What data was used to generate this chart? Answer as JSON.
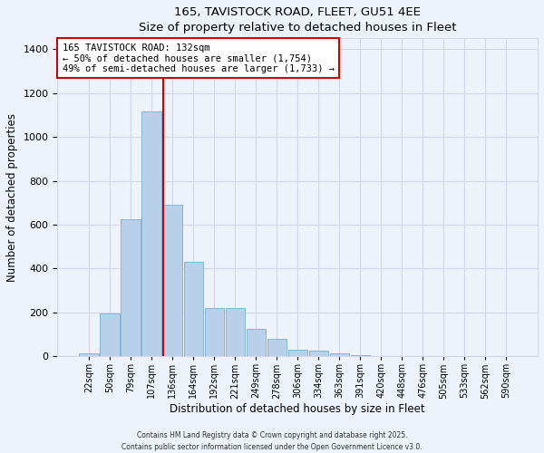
{
  "title_line1": "165, TAVISTOCK ROAD, FLEET, GU51 4EE",
  "title_line2": "Size of property relative to detached houses in Fleet",
  "xlabel": "Distribution of detached houses by size in Fleet",
  "ylabel": "Number of detached properties",
  "bar_labels": [
    "22sqm",
    "50sqm",
    "79sqm",
    "107sqm",
    "136sqm",
    "164sqm",
    "192sqm",
    "221sqm",
    "249sqm",
    "278sqm",
    "306sqm",
    "334sqm",
    "363sqm",
    "391sqm",
    "420sqm",
    "448sqm",
    "476sqm",
    "505sqm",
    "533sqm",
    "562sqm",
    "590sqm"
  ],
  "bar_heights": [
    15,
    195,
    625,
    1115,
    690,
    430,
    220,
    220,
    125,
    80,
    30,
    25,
    12,
    3,
    2,
    1,
    0,
    0,
    0,
    0,
    0
  ],
  "bar_color": "#b8d0ea",
  "bar_edgecolor": "#7aaed4",
  "annotation_title": "165 TAVISTOCK ROAD: 132sqm",
  "annotation_line2": "← 50% of detached houses are smaller (1,754)",
  "annotation_line3": "49% of semi-detached houses are larger (1,733) →",
  "annotation_box_color": "#ffffff",
  "annotation_box_edgecolor": "#cc0000",
  "vline_color": "#cc0000",
  "vline_x_index": 3.55,
  "ylim": [
    0,
    1450
  ],
  "yticks": [
    0,
    200,
    400,
    600,
    800,
    1000,
    1200,
    1400
  ],
  "grid_color": "#d0d8e8",
  "background_color": "#eef2fa",
  "footnote1": "Contains HM Land Registry data © Crown copyright and database right 2025.",
  "footnote2": "Contains public sector information licensed under the Open Government Licence v3.0."
}
